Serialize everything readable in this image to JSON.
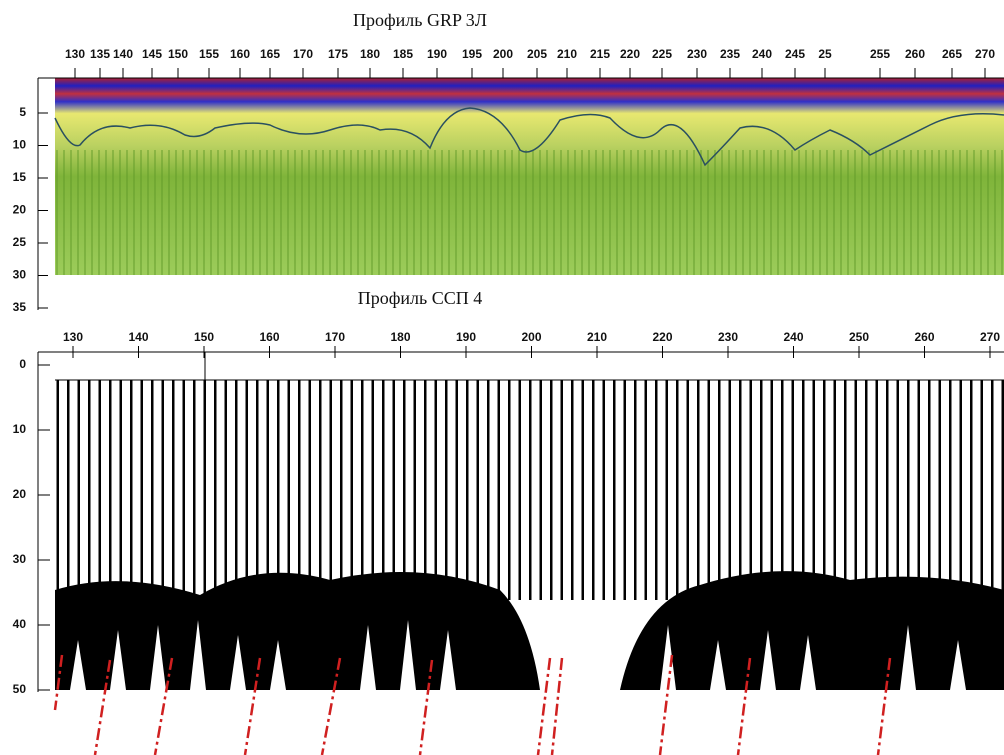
{
  "top": {
    "title": "Профиль GRP 3Л",
    "x_ticks": [
      130,
      135,
      140,
      145,
      150,
      155,
      160,
      165,
      170,
      175,
      180,
      185,
      190,
      195,
      200,
      205,
      210,
      215,
      220,
      225,
      230,
      235,
      240,
      245,
      25,
      255,
      260,
      265,
      270
    ],
    "y_ticks": [
      5,
      10,
      15,
      20,
      25,
      30,
      35
    ]
  },
  "bottom": {
    "title": "Профиль ССП 4",
    "x_ticks": [
      130,
      140,
      150,
      160,
      170,
      180,
      190,
      200,
      210,
      220,
      230,
      240,
      250,
      260,
      270
    ],
    "y_ticks": [
      0,
      10,
      20,
      30,
      40,
      50
    ]
  }
}
